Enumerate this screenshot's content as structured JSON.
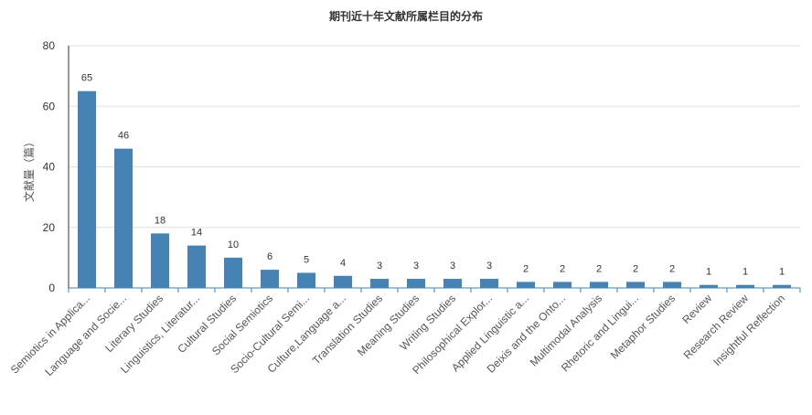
{
  "colors": {
    "bar": "#4682b4",
    "axis": "#333333",
    "grid": "#e0e0e0"
  },
  "chart_data": {
    "type": "bar",
    "title": "期刊近十年文献所属栏目的分布",
    "xlabel": "",
    "ylabel": "文献量（篇）",
    "ylim": [
      0,
      80
    ],
    "yticks": [
      0,
      20,
      40,
      60,
      80
    ],
    "grid": true,
    "categories": [
      "Semiotics in Applica...",
      "Language and Socie...",
      "Literary Studies",
      "Linguistics, Literatur...",
      "Cultural Studies",
      "Social Semiotics",
      "Socio-Cultural Semi...",
      "Culture,Language a...",
      "Translation Studies",
      "Meaning Studies",
      "Writing Studies",
      "Philosophical Explor...",
      "Applied Linguistic a...",
      "Deixis and the Onto...",
      "Multimodal Analysis",
      "Rhetoric and Lingui...",
      "Metaphor Studies",
      "Review",
      "Research Review",
      "Insightful Reflection"
    ],
    "values": [
      65,
      46,
      18,
      14,
      10,
      6,
      5,
      4,
      3,
      3,
      3,
      3,
      2,
      2,
      2,
      2,
      2,
      1,
      1,
      1
    ]
  }
}
